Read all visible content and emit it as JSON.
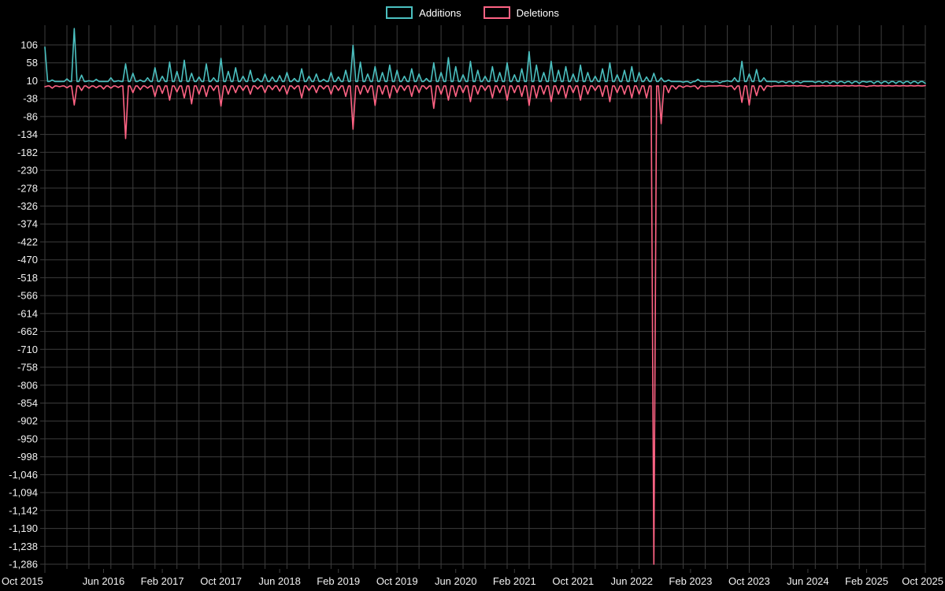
{
  "colors": {
    "background": "#000000",
    "text": "#f2f2f2",
    "grid": "#3c3c3c",
    "additions": "#4bc0c0",
    "deletions": "#ff6384"
  },
  "legend": {
    "additions_label": "Additions",
    "deletions_label": "Deletions"
  },
  "chart_data": {
    "type": "line",
    "title": "",
    "xlabel": "",
    "ylabel": "",
    "x_unit": "month",
    "x_start": "Oct 2015",
    "x_end": "Oct 2025",
    "grid": true,
    "legend_position": "top",
    "ylim": [
      -1286,
      158
    ],
    "y_ticks": [
      106,
      58,
      10,
      -38,
      -86,
      -134,
      -182,
      -230,
      -278,
      -326,
      -374,
      -422,
      -470,
      -518,
      -566,
      -614,
      -662,
      -710,
      -758,
      -806,
      -854,
      -902,
      -950,
      -998,
      -1046,
      -1094,
      -1142,
      -1190,
      -1238,
      -1286
    ],
    "x_tick_labels": [
      "Oct 2015",
      "Jun 2016",
      "Feb 2017",
      "Oct 2017",
      "Jun 2018",
      "Feb 2019",
      "Oct 2019",
      "Jun 2020",
      "Feb 2021",
      "Oct 2021",
      "Jun 2022",
      "Feb 2023",
      "Oct 2023",
      "Jun 2024",
      "Feb 2025",
      "Oct 2025"
    ],
    "x_tick_positions": [
      0,
      8,
      16,
      24,
      32,
      40,
      48,
      56,
      64,
      72,
      80,
      88,
      96,
      104,
      112,
      120
    ],
    "series": [
      {
        "name": "Additions",
        "color": "#4bc0c0",
        "baseline": 8,
        "values": [
          100,
          12,
          8,
          15,
          150,
          25,
          10,
          14,
          8,
          18,
          10,
          55,
          30,
          12,
          18,
          45,
          22,
          60,
          35,
          65,
          30,
          20,
          55,
          18,
          70,
          35,
          45,
          22,
          38,
          16,
          28,
          20,
          24,
          32,
          16,
          42,
          22,
          28,
          14,
          32,
          20,
          38,
          105,
          60,
          28,
          48,
          32,
          52,
          38,
          22,
          42,
          28,
          16,
          58,
          32,
          72,
          48,
          26,
          62,
          38,
          22,
          48,
          32,
          58,
          26,
          42,
          88,
          52,
          32,
          62,
          38,
          48,
          28,
          52,
          32,
          22,
          42,
          58,
          26,
          38,
          48,
          32,
          20,
          30,
          18,
          12,
          8,
          6,
          4,
          14,
          8,
          6,
          4,
          10,
          18,
          62,
          28,
          40,
          18,
          8,
          5,
          4,
          3,
          4,
          8,
          5,
          4,
          3,
          3,
          4,
          3,
          3,
          6,
          3,
          3,
          3,
          3,
          3,
          3,
          3,
          3
        ]
      },
      {
        "name": "Deletions",
        "color": "#ff6384",
        "baseline": -4,
        "values": [
          -6,
          -10,
          -6,
          -9,
          -55,
          -16,
          -10,
          -9,
          -12,
          -10,
          -8,
          -145,
          -22,
          -14,
          -10,
          -32,
          -24,
          -42,
          -20,
          -36,
          -52,
          -26,
          -32,
          -16,
          -58,
          -26,
          -22,
          -16,
          -26,
          -12,
          -22,
          -14,
          -18,
          -26,
          -12,
          -36,
          -16,
          -22,
          -12,
          -26,
          -16,
          -32,
          -120,
          -26,
          -22,
          -56,
          -26,
          -36,
          -22,
          -16,
          -32,
          -22,
          -12,
          -64,
          -26,
          -42,
          -32,
          -22,
          -46,
          -26,
          -16,
          -36,
          -22,
          -42,
          -22,
          -32,
          -56,
          -36,
          -26,
          -46,
          -26,
          -36,
          -22,
          -42,
          -26,
          -16,
          -32,
          -46,
          -22,
          -26,
          -36,
          -26,
          -36,
          -1286,
          -105,
          -22,
          -12,
          -8,
          -6,
          -12,
          -6,
          -4,
          -3,
          -6,
          -14,
          -48,
          -55,
          -30,
          -16,
          -6,
          -4,
          -3,
          -3,
          -3,
          -6,
          -4,
          -3,
          -3,
          -3,
          -3,
          -3,
          -3,
          -6,
          -3,
          -3,
          -3,
          -3,
          -3,
          -3,
          -3,
          -3
        ]
      }
    ]
  }
}
